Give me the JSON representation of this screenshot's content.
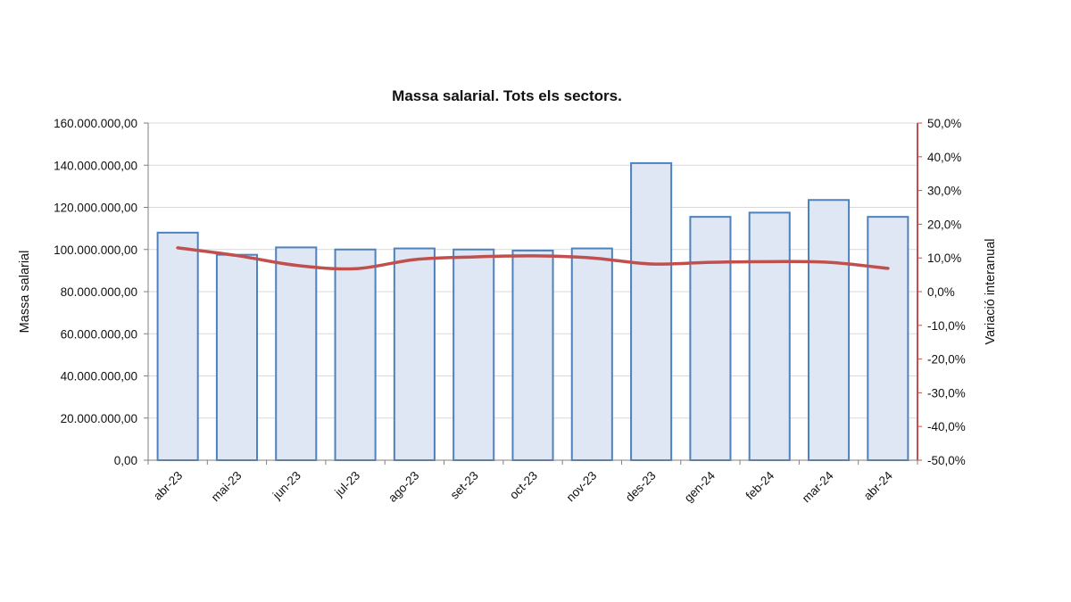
{
  "chart_data": {
    "type": "bar",
    "title": "Massa salarial. Tots els sectors.",
    "categories": [
      "abr-23",
      "mai-23",
      "jun-23",
      "jul-23",
      "ago-23",
      "set-23",
      "oct-23",
      "nov-23",
      "des-23",
      "gen-24",
      "feb-24",
      "mar-24",
      "abr-24"
    ],
    "ylabel": "Massa salarial",
    "y2label": "Variació interanual",
    "ylim": [
      0,
      160000000
    ],
    "y2lim": [
      -50,
      50
    ],
    "yticks": [
      "0,00",
      "20.000.000,00",
      "40.000.000,00",
      "60.000.000,00",
      "80.000.000,00",
      "100.000.000,00",
      "120.000.000,00",
      "140.000.000,00",
      "160.000.000,00"
    ],
    "y2ticks": [
      "-50,0%",
      "-40,0%",
      "-30,0%",
      "-20,0%",
      "-10,0%",
      "0,0%",
      "10,0%",
      "20,0%",
      "30,0%",
      "40,0%",
      "50,0%"
    ],
    "grid": true,
    "series": [
      {
        "type": "bar",
        "axis": "left",
        "values": [
          108000000,
          97500000,
          101000000,
          100000000,
          100500000,
          100000000,
          99500000,
          100500000,
          141000000,
          115500000,
          117500000,
          123500000,
          115500000
        ],
        "fill": "#dfe6f4",
        "stroke": "#4f81bd"
      },
      {
        "type": "line",
        "axis": "right",
        "values": [
          13.0,
          10.7,
          7.8,
          6.8,
          9.5,
          10.3,
          10.6,
          10.0,
          8.2,
          8.7,
          8.9,
          8.7,
          6.9
        ],
        "color": "#c0504d",
        "smooth": true
      }
    ]
  }
}
